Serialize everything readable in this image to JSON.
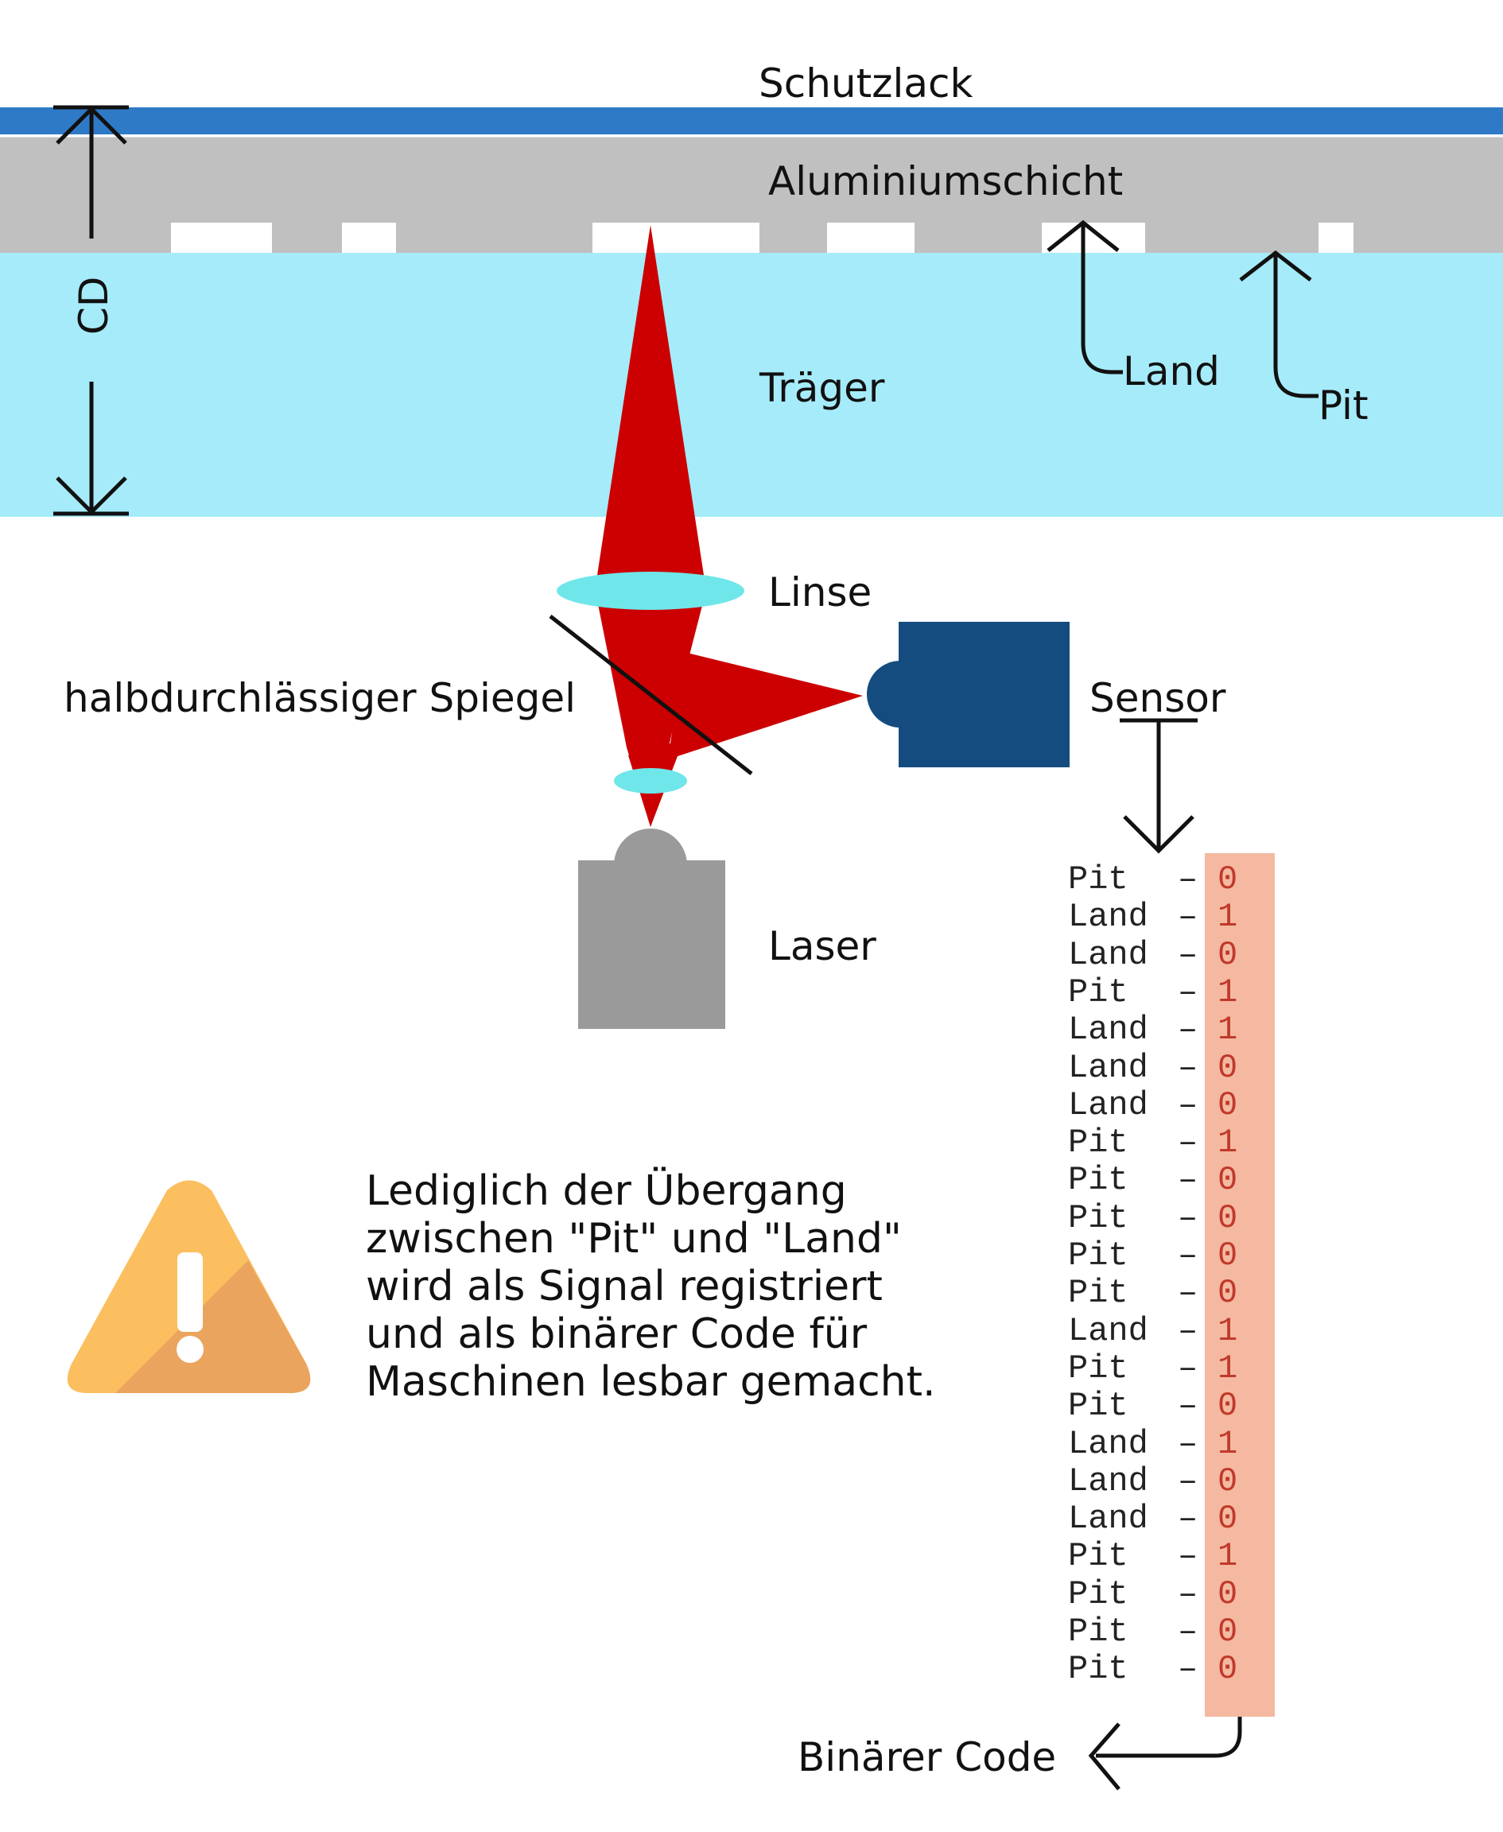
{
  "labels": {
    "schutzlack": "Schutzlack",
    "aluminium": "Aluminiumschicht",
    "traeger": "Träger",
    "land": "Land",
    "pit": "Pit",
    "cd": "CD",
    "linse": "Linse",
    "spiegel": "halbdurchlässiger Spiegel",
    "sensor": "Sensor",
    "laser": "Laser",
    "binaer": "Binärer Code"
  },
  "note": {
    "lines": [
      "Lediglich der Übergang",
      "zwischen \"Pit\" und \"Land\"",
      "wird als Signal registriert",
      "und als binärer Code für",
      "Maschinen lesbar gemacht."
    ]
  },
  "icons": {
    "warning": "warning-triangle-icon"
  },
  "colors": {
    "schutzlack": "#2f7ac6",
    "aluminium": "#c0c0c0",
    "traeger": "#a6ebfa",
    "laser_beam": "#cc0000",
    "lens": "#6fe6ea",
    "sensor": "#154c80",
    "laser_body": "#9a9a9a",
    "code_bar": "#f4b9a0",
    "warning_light": "#fbbf5f",
    "warning_dark": "#eba45d"
  },
  "code": {
    "rows": [
      {
        "kind": "Pit",
        "bit": "0"
      },
      {
        "kind": "Land",
        "bit": "1"
      },
      {
        "kind": "Land",
        "bit": "0"
      },
      {
        "kind": "Pit",
        "bit": "1"
      },
      {
        "kind": "Land",
        "bit": "1"
      },
      {
        "kind": "Land",
        "bit": "0"
      },
      {
        "kind": "Land",
        "bit": "0"
      },
      {
        "kind": "Pit",
        "bit": "1"
      },
      {
        "kind": "Pit",
        "bit": "0"
      },
      {
        "kind": "Pit",
        "bit": "0"
      },
      {
        "kind": "Pit",
        "bit": "0"
      },
      {
        "kind": "Pit",
        "bit": "0"
      },
      {
        "kind": "Land",
        "bit": "1"
      },
      {
        "kind": "Pit",
        "bit": "1"
      },
      {
        "kind": "Pit",
        "bit": "0"
      },
      {
        "kind": "Land",
        "bit": "1"
      },
      {
        "kind": "Land",
        "bit": "0"
      },
      {
        "kind": "Land",
        "bit": "0"
      },
      {
        "kind": "Pit",
        "bit": "1"
      },
      {
        "kind": "Pit",
        "bit": "0"
      },
      {
        "kind": "Pit",
        "bit": "0"
      },
      {
        "kind": "Pit",
        "bit": "0"
      }
    ]
  }
}
